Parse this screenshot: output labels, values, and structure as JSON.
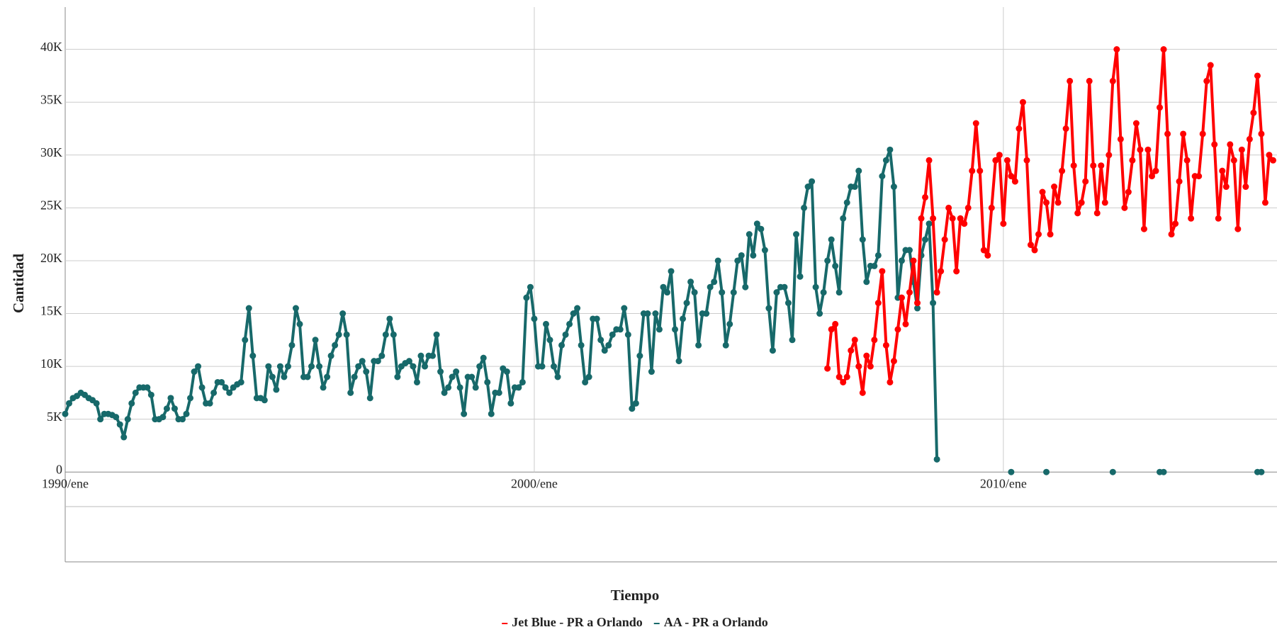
{
  "chart_data": {
    "type": "line",
    "x_label": "Tiempo",
    "y_label": "Cantidad",
    "categories": [
      "1990/ene",
      null,
      null,
      null,
      null,
      null,
      null,
      null,
      null,
      null,
      null,
      null,
      null,
      null,
      null,
      null,
      null,
      null,
      null,
      null,
      null,
      null,
      null,
      null,
      null,
      null,
      null,
      null,
      null,
      null,
      null,
      null,
      null,
      null,
      null,
      null,
      null,
      null,
      null,
      null,
      null,
      null,
      null,
      null,
      null,
      null,
      null,
      null,
      null,
      null,
      null,
      null,
      null,
      null,
      null,
      null,
      null,
      null,
      null,
      null,
      null,
      null,
      null,
      null,
      null,
      null,
      null,
      null,
      null,
      null,
      null,
      null,
      null,
      null,
      null,
      null,
      null,
      null,
      null,
      null,
      null,
      null,
      null,
      null,
      null,
      null,
      null,
      null,
      null,
      null,
      null,
      null,
      null,
      null,
      null,
      null,
      null,
      null,
      null,
      null,
      null,
      null,
      null,
      null,
      null,
      null,
      null,
      null,
      null,
      null,
      null,
      null,
      null,
      null,
      null,
      null,
      null,
      null,
      null,
      null,
      "2000/ene",
      null,
      null,
      null,
      null,
      null,
      null,
      null,
      null,
      null,
      null,
      null,
      null,
      null,
      null,
      null,
      null,
      null,
      null,
      null,
      null,
      null,
      null,
      null,
      null,
      null,
      null,
      null,
      null,
      null,
      null,
      null,
      null,
      null,
      null,
      null,
      null,
      null,
      null,
      null,
      null,
      null,
      null,
      null,
      null,
      null,
      null,
      null,
      null,
      null,
      null,
      null,
      null,
      null,
      null,
      null,
      null,
      null,
      null,
      null,
      null,
      null,
      null,
      null,
      null,
      null,
      null,
      null,
      null,
      null,
      null,
      null,
      null,
      null,
      null,
      null,
      null,
      null,
      null,
      null,
      null,
      null,
      null,
      null,
      null,
      null,
      null,
      null,
      null,
      null,
      null,
      null,
      null,
      null,
      null,
      null,
      null,
      null,
      null,
      null,
      null,
      null,
      null,
      null,
      null,
      null,
      null,
      null,
      null,
      null,
      null,
      null,
      null,
      null,
      null,
      null,
      null,
      null,
      null,
      null,
      "2010/ene",
      null,
      null,
      null,
      null,
      null,
      null,
      null,
      null,
      null,
      null,
      null,
      null,
      null,
      null,
      null,
      null,
      null,
      null,
      null,
      null,
      null,
      null,
      null,
      null,
      null,
      null,
      null,
      null,
      null,
      null,
      null,
      null,
      null,
      null,
      null,
      null,
      null,
      null,
      null,
      null,
      null,
      null,
      null,
      null,
      null,
      null,
      null,
      null,
      null,
      null,
      null,
      null,
      null,
      null,
      null,
      null,
      null,
      null,
      null,
      null,
      null,
      null,
      null,
      null,
      null,
      null,
      null,
      null,
      null
    ],
    "series": [
      {
        "name": "Jet Blue - PR a Orlando",
        "color": "#ff0000",
        "values": [
          null,
          null,
          null,
          null,
          null,
          null,
          null,
          null,
          null,
          null,
          null,
          null,
          null,
          null,
          null,
          null,
          null,
          null,
          null,
          null,
          null,
          null,
          null,
          null,
          null,
          null,
          null,
          null,
          null,
          null,
          null,
          null,
          null,
          null,
          null,
          null,
          null,
          null,
          null,
          null,
          null,
          null,
          null,
          null,
          null,
          null,
          null,
          null,
          null,
          null,
          null,
          null,
          null,
          null,
          null,
          null,
          null,
          null,
          null,
          null,
          null,
          null,
          null,
          null,
          null,
          null,
          null,
          null,
          null,
          null,
          null,
          null,
          null,
          null,
          null,
          null,
          null,
          null,
          null,
          null,
          null,
          null,
          null,
          null,
          null,
          null,
          null,
          null,
          null,
          null,
          null,
          null,
          null,
          null,
          null,
          null,
          null,
          null,
          null,
          null,
          null,
          null,
          null,
          null,
          null,
          null,
          null,
          null,
          null,
          null,
          null,
          null,
          null,
          null,
          null,
          null,
          null,
          null,
          null,
          null,
          null,
          null,
          null,
          null,
          null,
          null,
          null,
          null,
          null,
          null,
          null,
          null,
          null,
          null,
          null,
          null,
          null,
          null,
          null,
          null,
          null,
          null,
          null,
          null,
          null,
          null,
          null,
          null,
          null,
          null,
          null,
          null,
          null,
          null,
          null,
          null,
          null,
          null,
          null,
          null,
          null,
          null,
          null,
          null,
          null,
          null,
          null,
          null,
          null,
          null,
          null,
          null,
          null,
          null,
          null,
          null,
          null,
          null,
          null,
          null,
          null,
          null,
          null,
          null,
          null,
          null,
          null,
          null,
          null,
          null,
          null,
          null,
          null,
          null,
          null,
          9800,
          13500,
          14000,
          9000,
          8500,
          9000,
          11500,
          12500,
          10000,
          7500,
          11000,
          10000,
          12500,
          16000,
          19000,
          12000,
          8500,
          10500,
          13500,
          16500,
          14000,
          17000,
          20000,
          16000,
          24000,
          26000,
          29500,
          24000,
          17000,
          19000,
          22000,
          25000,
          24000,
          19000,
          24000,
          23500,
          25000,
          28500,
          33000,
          28500,
          21000,
          20500,
          25000,
          29500,
          30000,
          23500,
          29500,
          28000,
          27500,
          32500,
          35000,
          29500,
          21500,
          21000,
          22500,
          26500,
          25500,
          22500,
          27000,
          25500,
          28500,
          32500,
          37000,
          29000,
          24500,
          25500,
          27500,
          37000,
          29000,
          24500,
          29000,
          25500,
          30000,
          37000,
          40000,
          31500,
          25000,
          26500,
          29500,
          33000,
          30500,
          23000,
          30500,
          28000,
          28500,
          34500,
          40000,
          32000,
          22500,
          23500,
          27500,
          32000,
          29500,
          24000,
          28000,
          28000,
          32000,
          37000,
          38500,
          31000,
          24000,
          28500,
          27000,
          31000,
          29500,
          23000,
          30500,
          27000,
          31500,
          34000,
          37500,
          32000,
          25500,
          30000,
          29500
        ]
      },
      {
        "name": "AA - PR a Orlando",
        "color": "#17696a",
        "values": [
          5500,
          6500,
          7000,
          7200,
          7500,
          7300,
          7000,
          6800,
          6500,
          5000,
          5500,
          5500,
          5400,
          5200,
          4500,
          3300,
          5000,
          6500,
          7500,
          8000,
          8000,
          8000,
          7300,
          5000,
          5000,
          5200,
          6000,
          7000,
          6000,
          5000,
          5000,
          5500,
          7000,
          9500,
          10000,
          8000,
          6500,
          6500,
          7500,
          8500,
          8500,
          8000,
          7500,
          8000,
          8300,
          8500,
          12500,
          15500,
          11000,
          7000,
          7000,
          6800,
          10000,
          9000,
          7800,
          10000,
          9000,
          10000,
          12000,
          15500,
          14000,
          9000,
          9000,
          10000,
          12500,
          10000,
          8000,
          9000,
          11000,
          12000,
          13000,
          15000,
          13000,
          7500,
          9000,
          10000,
          10500,
          9500,
          7000,
          10500,
          10500,
          11000,
          13000,
          14500,
          13000,
          9000,
          10000,
          10300,
          10500,
          10000,
          8500,
          11000,
          10000,
          11000,
          11000,
          13000,
          9500,
          7500,
          8000,
          9000,
          9500,
          8000,
          5500,
          9000,
          9000,
          8000,
          10000,
          10800,
          8500,
          5500,
          7500,
          7500,
          9800,
          9500,
          6500,
          8000,
          8000,
          8500,
          16500,
          17500,
          14500,
          10000,
          10000,
          14000,
          12500,
          10000,
          9000,
          12000,
          13000,
          14000,
          15000,
          15500,
          12000,
          8500,
          9000,
          14500,
          14500,
          12500,
          11500,
          12000,
          13000,
          13500,
          13500,
          15500,
          13000,
          6000,
          6500,
          11000,
          15000,
          15000,
          9500,
          15000,
          13500,
          17500,
          17000,
          19000,
          13500,
          10500,
          14500,
          16000,
          18000,
          17000,
          12000,
          15000,
          15000,
          17500,
          18000,
          20000,
          17000,
          12000,
          14000,
          17000,
          20000,
          20500,
          17500,
          22500,
          20500,
          23500,
          23000,
          21000,
          15500,
          11500,
          17000,
          17500,
          17500,
          16000,
          12500,
          22500,
          18500,
          25000,
          27000,
          27500,
          17500,
          15000,
          17000,
          20000,
          22000,
          19500,
          17000,
          24000,
          25500,
          27000,
          27000,
          28500,
          22000,
          18000,
          19500,
          19500,
          20500,
          28000,
          29500,
          30500,
          27000,
          16500,
          20000,
          21000,
          21000,
          18000,
          15500,
          20500,
          22000,
          23500,
          16000,
          1200,
          null,
          null,
          null,
          null,
          null,
          null,
          null,
          null,
          null,
          null,
          null,
          null,
          null,
          null,
          null,
          null,
          null,
          null,
          0,
          null,
          null,
          null,
          null,
          null,
          null,
          null,
          null,
          0,
          null,
          null,
          null,
          null,
          null,
          null,
          null,
          null,
          null,
          null,
          null,
          null,
          null,
          null,
          null,
          null,
          0,
          null,
          null,
          null,
          null,
          null,
          null,
          null,
          null,
          null,
          null,
          null,
          0,
          0,
          null,
          null,
          null,
          null,
          null,
          null,
          null,
          null,
          null,
          null,
          null,
          null,
          null,
          null,
          null,
          null,
          null,
          null,
          null,
          null,
          null,
          null,
          null,
          0,
          0,
          null,
          null,
          null
        ]
      }
    ],
    "ylim": [
      -8500,
      44000
    ],
    "yticks": [
      0,
      {
        "value": 5000,
        "label": "5K"
      },
      {
        "value": 10000,
        "label": "10K"
      },
      {
        "value": 15000,
        "label": "15K"
      },
      {
        "value": 20000,
        "label": "20K"
      },
      {
        "value": 25000,
        "label": "25K"
      },
      {
        "value": 30000,
        "label": "30K"
      },
      {
        "value": 35000,
        "label": "35K"
      },
      {
        "value": 40000,
        "label": "40K"
      }
    ],
    "grid": true
  }
}
